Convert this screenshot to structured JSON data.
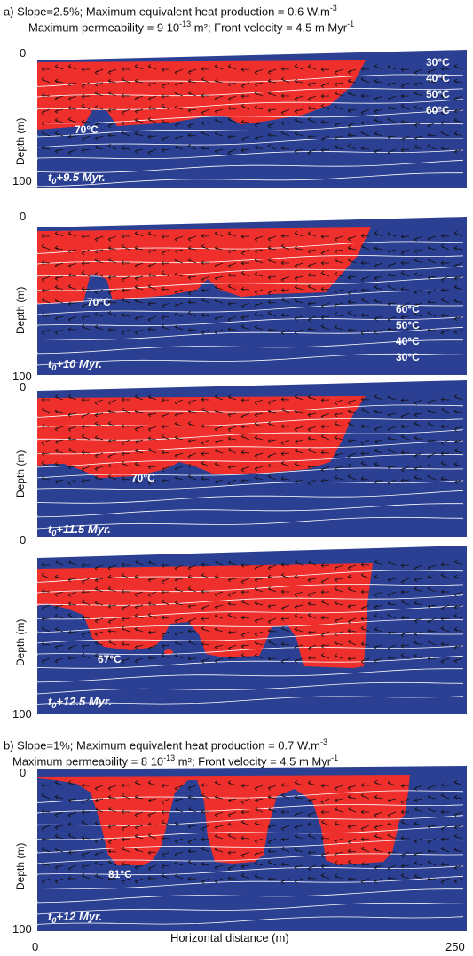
{
  "colors": {
    "background_fluid": "#2b3f93",
    "convecting_zone": "#ef2f2b",
    "isotherm": "#ffffff",
    "arrow": "#111111",
    "label_text": "#ffffff"
  },
  "header_a": {
    "line1_pre": "a) Slope=2.5%; Maximum equivalent heat production = 0.6 W.m",
    "line1_sup": "-3",
    "line2_pre": "Maximum permeability = 9 10",
    "line2_sup1": "-13",
    "line2_mid": " m²; Front velocity = 4.5 m Myr",
    "line2_sup2": "-1"
  },
  "header_b": {
    "line1_pre": "b) Slope=1%; Maximum equivalent heat production = 0.7 W.m",
    "line1_sup": "-3",
    "line2_pre": "Maximum permeability = 8 10",
    "line2_sup1": "-13",
    "line2_mid": " m²; Front velocity = 4.5 m Myr",
    "line2_sup2": "-1"
  },
  "y_axis": {
    "label": "Depth  (m)",
    "top_tick": "0",
    "bottom_tick": "100"
  },
  "x_axis": {
    "label": "Horizontal distance  (m)",
    "left_tick": "0",
    "right_tick": "250"
  },
  "panels": [
    {
      "time_prefix": "t",
      "time_sub": "0",
      "time_suffix": "+9.5 Myr.",
      "max_temp_label": "70°C",
      "isotherm_labels": [
        "30°C",
        "40°C",
        "50°C",
        "60°C"
      ]
    },
    {
      "time_prefix": "t",
      "time_sub": "0",
      "time_suffix": "+10 Myr.",
      "max_temp_label": "70°C",
      "isotherm_labels": [
        "60°C",
        "50°C",
        "40°C",
        "30°C"
      ]
    },
    {
      "time_prefix": "t",
      "time_sub": "0",
      "time_suffix": "+11.5 Myr.",
      "max_temp_label": "70°C",
      "isotherm_labels": []
    },
    {
      "time_prefix": "t",
      "time_sub": "0",
      "time_suffix": "+12.5 Myr.",
      "max_temp_label": "67°C",
      "isotherm_labels": []
    },
    {
      "time_prefix": "t",
      "time_sub": "0",
      "time_suffix": "+12 Myr.",
      "max_temp_label": "81°C",
      "isotherm_labels": []
    }
  ]
}
